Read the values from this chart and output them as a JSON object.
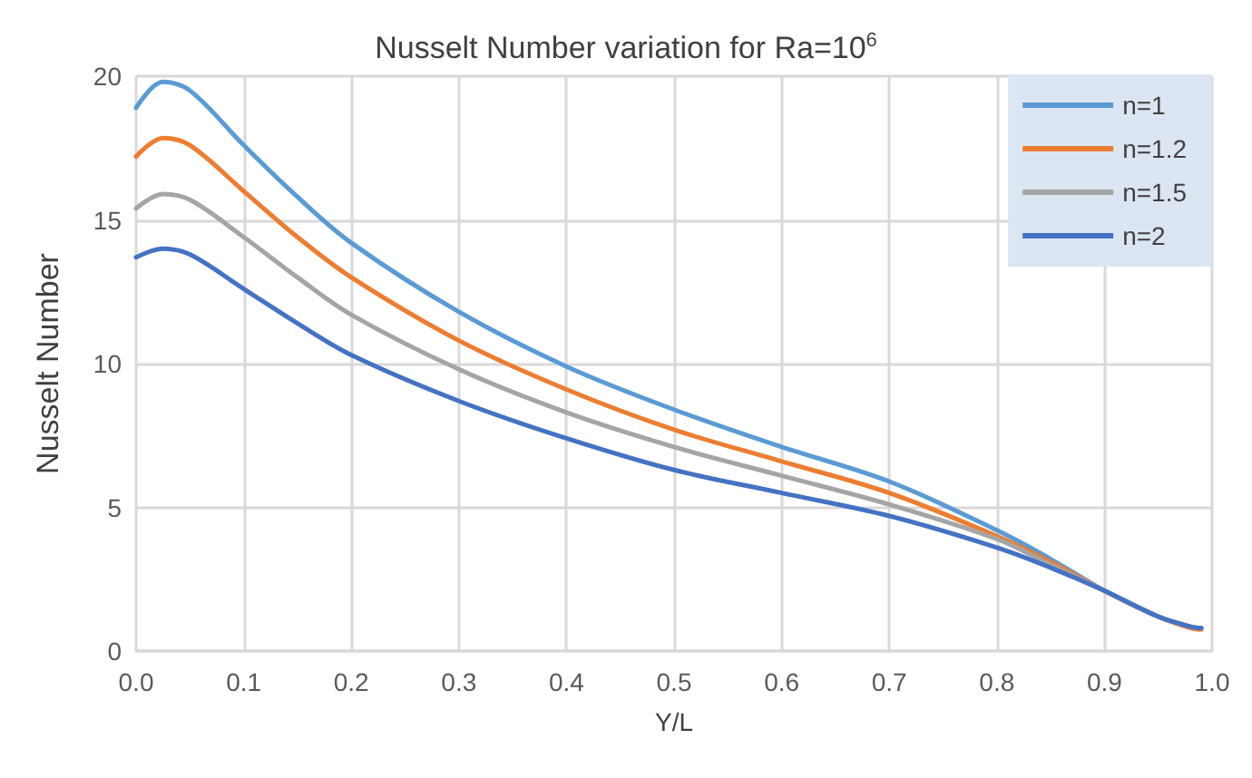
{
  "chart_data": {
    "type": "line",
    "title": "Nusselt Number variation for Ra=10$^{6}$",
    "xlabel": "Y/L",
    "ylabel": "Nusselt Number",
    "x": [
      0,
      0.025,
      0.05,
      0.1,
      0.15,
      0.2,
      0.3,
      0.4,
      0.5,
      0.6,
      0.7,
      0.8,
      0.85,
      0.9,
      0.95,
      0.98,
      0.99
    ],
    "series": [
      {
        "name": "n=1",
        "color": "#5b9bd5",
        "values": [
          18.9,
          19.8,
          19.5,
          17.6,
          15.8,
          14.2,
          11.8,
          9.9,
          8.4,
          7.1,
          5.9,
          4.2,
          3.2,
          2.1,
          1.2,
          0.85,
          0.8
        ]
      },
      {
        "name": "n=1.2",
        "color": "#ed7d31",
        "values": [
          17.2,
          17.85,
          17.6,
          16.0,
          14.4,
          13.0,
          10.8,
          9.1,
          7.7,
          6.6,
          5.5,
          4.0,
          3.1,
          2.1,
          1.2,
          0.8,
          0.75
        ]
      },
      {
        "name": "n=1.5",
        "color": "#a5a5a5",
        "values": [
          15.4,
          15.9,
          15.7,
          14.4,
          13.0,
          11.7,
          9.8,
          8.3,
          7.1,
          6.1,
          5.1,
          3.9,
          3.0,
          2.1,
          1.2,
          0.85,
          0.8
        ]
      },
      {
        "name": "n=2",
        "color": "#4472c4",
        "values": [
          13.7,
          14.0,
          13.8,
          12.6,
          11.4,
          10.3,
          8.7,
          7.4,
          6.3,
          5.5,
          4.7,
          3.6,
          2.9,
          2.1,
          1.2,
          0.85,
          0.8
        ]
      }
    ],
    "xlim": [
      0,
      1
    ],
    "xticks": [
      {
        "value": 0,
        "label": "0.0"
      },
      0.1,
      0.2,
      0.3,
      0.4,
      0.5,
      0.6,
      0.7,
      0.8,
      0.9,
      {
        "value": 1,
        "label": "1.0"
      }
    ],
    "ylim": [
      0,
      20
    ],
    "yticks": [
      0,
      5,
      10,
      15,
      20
    ],
    "grid": true,
    "legend": "top right",
    "marker": "none",
    "line_style": "solid"
  }
}
